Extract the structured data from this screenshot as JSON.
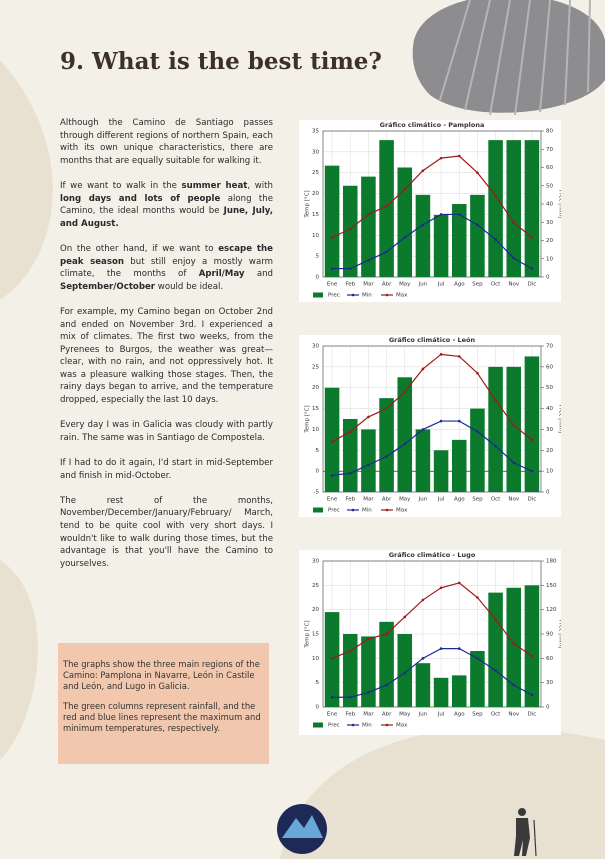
{
  "document": {
    "heading": "9. What is the best time?",
    "paragraphs": [
      [
        "Although the Camino de Santiago passes through different regions of northern Spain, each with its own unique characteristics, there are months that are equally suitable for walking it."
      ],
      [
        "If we want to walk in the ",
        {
          "text": "summer heat",
          "bold": true
        },
        ", with ",
        {
          "text": "long days and lots of people",
          "bold": true
        },
        " along the Camino, the ideal months would be ",
        {
          "text": "June, July, and August.",
          "bold": true
        }
      ],
      [
        "On the other hand, if we want to ",
        {
          "text": "escape the peak season",
          "bold": true
        },
        " but still enjoy a mostly warm climate, the months of ",
        {
          "text": "April/May",
          "bold": true
        },
        " and ",
        {
          "text": "September/October",
          "bold": true
        },
        " would be ideal."
      ],
      [
        "For example, my Camino began on October 2nd and ended on November 3rd. I experienced a mix of climates. The first two weeks, from the Pyrenees to Burgos, the weather was great—clear, with no rain, and not oppressively hot. It was a pleasure walking those stages. Then, the rainy days began to arrive, and the temperature dropped, especially the last 10 days."
      ],
      [
        "Every day I was in Galicia was cloudy with partly rain. The same was in Santiago de Compostela."
      ],
      [
        "If I had to do it again, I'd start in mid-September and finish in mid-October."
      ],
      [
        "The rest of the months, November/December/January/February/ March, tend to be quite cool with very short days. I wouldn't like to walk during those times, but the advantage is that you'll have the Camino to yourselves."
      ]
    ],
    "note": [
      "The graphs show the three main regions of the Camino: Pamplona in Navarre, León in Castile and León, and Lugo in Galicia.",
      "The green columns represent rainfall, and the red and blue lines represent the maximum and minimum temperatures, respectively."
    ]
  },
  "chart_data": [
    {
      "type": "bar-line",
      "title": "Gráfico climático - Pamplona",
      "ylabel": "Temp [°C]",
      "y2label": "Prec [mm]",
      "grid": true,
      "categories": [
        "Ene",
        "Feb",
        "Mar",
        "Abr",
        "May",
        "Jun",
        "Jul",
        "Ago",
        "Sep",
        "Oct",
        "Nov",
        "Dic"
      ],
      "ylim": [
        0,
        35
      ],
      "yticks": [
        0,
        5,
        10,
        15,
        20,
        25,
        30,
        35
      ],
      "y2lim": [
        0,
        80
      ],
      "y2ticks": [
        0,
        10,
        20,
        30,
        40,
        50,
        60,
        70,
        80
      ],
      "series": [
        {
          "name": "Prec",
          "color": "#0b7a2c",
          "axis": "y2",
          "values": [
            61,
            50,
            55,
            75,
            60,
            45,
            34,
            40,
            45,
            75,
            75,
            75
          ]
        },
        {
          "name": "Min",
          "color": "#1a2b8f",
          "values": [
            2,
            2,
            4,
            6,
            9.5,
            12.5,
            15,
            15,
            12.5,
            9,
            4.5,
            2
          ]
        },
        {
          "name": "Max",
          "color": "#9e1b1b",
          "values": [
            9.5,
            11.5,
            15,
            17,
            21,
            25.5,
            28.5,
            29,
            25,
            19.5,
            13,
            9.5
          ]
        }
      ]
    },
    {
      "type": "bar-line",
      "title": "Gráfico climático - León",
      "ylabel": "Temp [°C]",
      "y2label": "Prec [mm]",
      "grid": true,
      "categories": [
        "Ene",
        "Feb",
        "Mar",
        "Abr",
        "May",
        "Jun",
        "Jul",
        "Ago",
        "Sep",
        "Oct",
        "Nov",
        "Dic"
      ],
      "ylim": [
        -5,
        30
      ],
      "yticks": [
        -5,
        0,
        5,
        10,
        15,
        20,
        25,
        30
      ],
      "y2lim": [
        0,
        70
      ],
      "y2ticks": [
        0,
        10,
        20,
        30,
        40,
        50,
        60,
        70
      ],
      "series": [
        {
          "name": "Prec",
          "color": "#0b7a2c",
          "axis": "y2",
          "values": [
            50,
            35,
            30,
            45,
            55,
            30,
            20,
            25,
            40,
            60,
            60,
            65
          ]
        },
        {
          "name": "Min",
          "color": "#1a2b8f",
          "values": [
            -1,
            -0.5,
            1.5,
            3.5,
            6.5,
            10,
            12,
            12,
            9.5,
            6,
            2,
            0
          ]
        },
        {
          "name": "Max",
          "color": "#9e1b1b",
          "values": [
            7,
            9.5,
            13,
            15,
            19,
            24.5,
            28,
            27.5,
            23.5,
            17,
            11,
            7.5
          ]
        }
      ]
    },
    {
      "type": "bar-line",
      "title": "Gráfico climático - Lugo",
      "ylabel": "Temp [°C]",
      "y2label": "Prec [mm]",
      "grid": true,
      "categories": [
        "Ene",
        "Feb",
        "Mar",
        "Abr",
        "May",
        "Jun",
        "Jul",
        "Ago",
        "Sep",
        "Oct",
        "Nov",
        "Dic"
      ],
      "ylim": [
        0,
        30
      ],
      "yticks": [
        0,
        5,
        10,
        15,
        20,
        25,
        30
      ],
      "y2lim": [
        0,
        180
      ],
      "y2ticks": [
        0,
        30,
        60,
        90,
        120,
        150,
        180
      ],
      "series": [
        {
          "name": "Prec",
          "color": "#0b7a2c",
          "axis": "y2",
          "values": [
            117,
            90,
            87,
            105,
            90,
            54,
            36,
            39,
            69,
            141,
            147,
            150
          ]
        },
        {
          "name": "Min",
          "color": "#1a2b8f",
          "values": [
            2,
            2,
            3,
            4.5,
            7,
            10,
            12,
            12,
            10,
            7.5,
            4.5,
            2.5
          ]
        },
        {
          "name": "Max",
          "color": "#9e1b1b",
          "values": [
            10,
            11.5,
            14,
            15,
            18.5,
            22,
            24.5,
            25.5,
            22.5,
            18,
            13,
            10.5
          ]
        }
      ]
    }
  ]
}
